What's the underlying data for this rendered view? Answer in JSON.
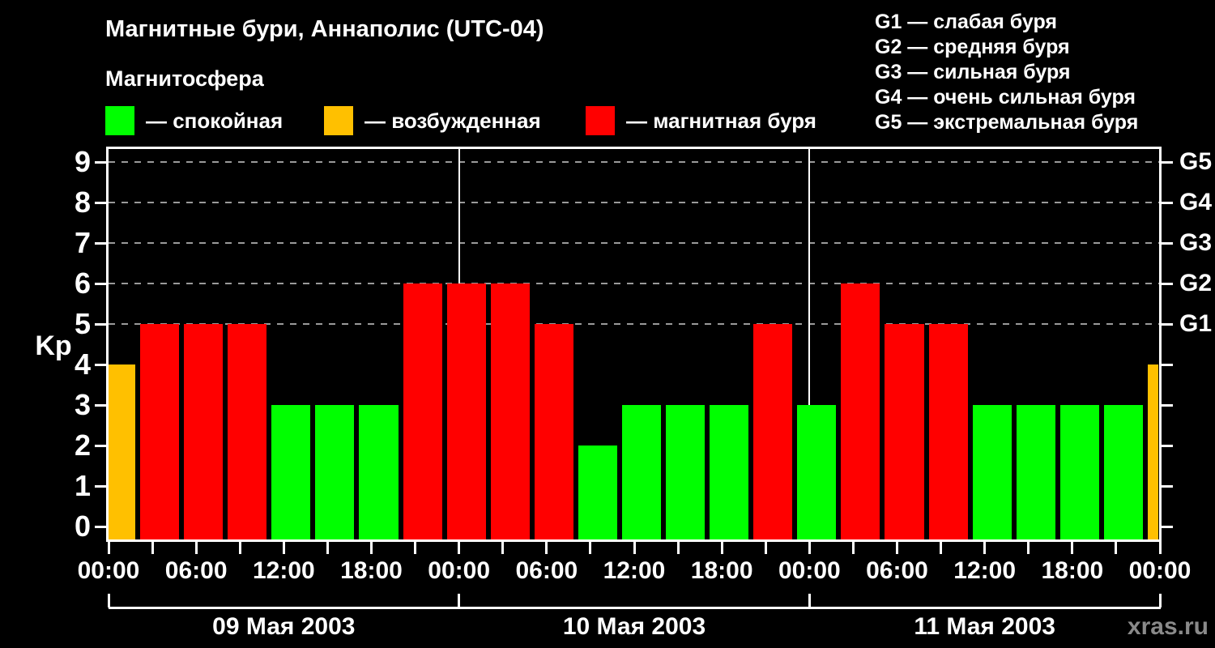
{
  "header": {
    "title": "Магнитные бури, Аннаполис (UTC-04)",
    "subtitle": "Магнитосфера"
  },
  "legend": {
    "items": [
      {
        "label": "— спокойная",
        "status": "calm",
        "color": "#00ff00"
      },
      {
        "label": "— возбужденная",
        "status": "excited",
        "color": "#ffc000"
      },
      {
        "label": "— магнитная буря",
        "status": "storm",
        "color": "#ff0000"
      }
    ]
  },
  "storm_scale_legend": {
    "items": [
      "G1 — слабая буря",
      "G2 — средняя буря",
      "G3 — сильная буря",
      "G4 — очень сильная буря",
      "G5 — экстремальная буря"
    ]
  },
  "watermark": "xras.ru",
  "chart_data": {
    "type": "bar",
    "title": "Магнитные бури, Аннаполис (UTC-04)",
    "subtitle": "Магнитосфера",
    "ylabel": "Kp",
    "ylim": [
      0,
      9
    ],
    "y_ticks": [
      0,
      1,
      2,
      3,
      4,
      5,
      6,
      7,
      8,
      9
    ],
    "gridline_values": [
      5,
      6,
      7,
      8,
      9
    ],
    "right_axis_labels": [
      {
        "label": "G1",
        "value": 5
      },
      {
        "label": "G2",
        "value": 6
      },
      {
        "label": "G3",
        "value": 7
      },
      {
        "label": "G4",
        "value": 8
      },
      {
        "label": "G5",
        "value": 9
      }
    ],
    "x_axis": {
      "hours_span": 72,
      "tick_step_hours": 3,
      "labeled_ticks": [
        {
          "hour": 0,
          "label": "00:00"
        },
        {
          "hour": 6,
          "label": "06:00"
        },
        {
          "hour": 12,
          "label": "12:00"
        },
        {
          "hour": 18,
          "label": "18:00"
        },
        {
          "hour": 24,
          "label": "00:00"
        },
        {
          "hour": 30,
          "label": "06:00"
        },
        {
          "hour": 36,
          "label": "12:00"
        },
        {
          "hour": 42,
          "label": "18:00"
        },
        {
          "hour": 48,
          "label": "00:00"
        },
        {
          "hour": 54,
          "label": "06:00"
        },
        {
          "hour": 60,
          "label": "12:00"
        },
        {
          "hour": 66,
          "label": "18:00"
        },
        {
          "hour": 72,
          "label": "00:00"
        }
      ],
      "day_boundary_hours": [
        24,
        48
      ]
    },
    "dates": [
      {
        "label": "09 Мая 2003",
        "start_hour": 0,
        "end_hour": 24
      },
      {
        "label": "10 Мая 2003",
        "start_hour": 24,
        "end_hour": 48
      },
      {
        "label": "11 Мая 2003",
        "start_hour": 48,
        "end_hour": 72
      }
    ],
    "status_colors": {
      "calm": "#00ff00",
      "excited": "#ffc000",
      "storm": "#ff0000"
    },
    "bars": [
      {
        "start_hour": 0,
        "end_hour": 2,
        "kp": 4,
        "status": "excited"
      },
      {
        "start_hour": 2,
        "end_hour": 5,
        "kp": 5,
        "status": "storm"
      },
      {
        "start_hour": 5,
        "end_hour": 8,
        "kp": 5,
        "status": "storm"
      },
      {
        "start_hour": 8,
        "end_hour": 11,
        "kp": 5,
        "status": "storm"
      },
      {
        "start_hour": 11,
        "end_hour": 14,
        "kp": 3,
        "status": "calm"
      },
      {
        "start_hour": 14,
        "end_hour": 17,
        "kp": 3,
        "status": "calm"
      },
      {
        "start_hour": 17,
        "end_hour": 20,
        "kp": 3,
        "status": "calm"
      },
      {
        "start_hour": 20,
        "end_hour": 23,
        "kp": 6,
        "status": "storm"
      },
      {
        "start_hour": 23,
        "end_hour": 26,
        "kp": 6,
        "status": "storm"
      },
      {
        "start_hour": 26,
        "end_hour": 29,
        "kp": 6,
        "status": "storm"
      },
      {
        "start_hour": 29,
        "end_hour": 32,
        "kp": 5,
        "status": "storm"
      },
      {
        "start_hour": 32,
        "end_hour": 35,
        "kp": 2,
        "status": "calm"
      },
      {
        "start_hour": 35,
        "end_hour": 38,
        "kp": 3,
        "status": "calm"
      },
      {
        "start_hour": 38,
        "end_hour": 41,
        "kp": 3,
        "status": "calm"
      },
      {
        "start_hour": 41,
        "end_hour": 44,
        "kp": 3,
        "status": "calm"
      },
      {
        "start_hour": 44,
        "end_hour": 47,
        "kp": 5,
        "status": "storm"
      },
      {
        "start_hour": 47,
        "end_hour": 50,
        "kp": 3,
        "status": "calm"
      },
      {
        "start_hour": 50,
        "end_hour": 53,
        "kp": 6,
        "status": "storm"
      },
      {
        "start_hour": 53,
        "end_hour": 56,
        "kp": 5,
        "status": "storm"
      },
      {
        "start_hour": 56,
        "end_hour": 59,
        "kp": 5,
        "status": "storm"
      },
      {
        "start_hour": 59,
        "end_hour": 62,
        "kp": 3,
        "status": "calm"
      },
      {
        "start_hour": 62,
        "end_hour": 65,
        "kp": 3,
        "status": "calm"
      },
      {
        "start_hour": 65,
        "end_hour": 68,
        "kp": 3,
        "status": "calm"
      },
      {
        "start_hour": 68,
        "end_hour": 71,
        "kp": 3,
        "status": "calm"
      },
      {
        "start_hour": 71,
        "end_hour": 72,
        "kp": 4,
        "status": "excited"
      }
    ]
  }
}
